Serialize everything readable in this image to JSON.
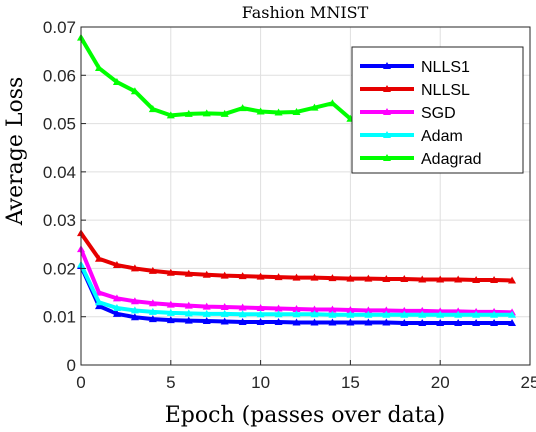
{
  "chart_data": {
    "type": "line",
    "title": "Fashion MNIST",
    "xlabel": "Epoch (passes over data)",
    "ylabel": "Average Loss",
    "xlim": [
      0,
      25
    ],
    "ylim": [
      0,
      0.07
    ],
    "xticks": [
      0,
      5,
      10,
      15,
      20,
      25
    ],
    "yticks": [
      0,
      0.01,
      0.02,
      0.03,
      0.04,
      0.05,
      0.06,
      0.07
    ],
    "xtick_labels": [
      "0",
      "5",
      "10",
      "15",
      "20",
      "25"
    ],
    "ytick_labels": [
      "0",
      "0.01",
      "0.02",
      "0.03",
      "0.04",
      "0.05",
      "0.06",
      "0.07"
    ],
    "grid": true,
    "legend_position": "top-right",
    "x": [
      0,
      1,
      2,
      3,
      4,
      5,
      6,
      7,
      8,
      9,
      10,
      11,
      12,
      13,
      14,
      15,
      16,
      17,
      18,
      19,
      20,
      21,
      22,
      23,
      24
    ],
    "series": [
      {
        "name": "NLLS1",
        "color": "#0000ff",
        "values": [
          0.0205,
          0.0122,
          0.0106,
          0.0099,
          0.0095,
          0.0093,
          0.0092,
          0.0091,
          0.009,
          0.0089,
          0.0089,
          0.0089,
          0.0088,
          0.0088,
          0.0088,
          0.0088,
          0.0088,
          0.0088,
          0.0087,
          0.0087,
          0.0087,
          0.0087,
          0.0087,
          0.0087,
          0.0087
        ]
      },
      {
        "name": "NLLSL",
        "color": "#e60000",
        "values": [
          0.0273,
          0.022,
          0.0207,
          0.02,
          0.0195,
          0.0191,
          0.0189,
          0.0187,
          0.0185,
          0.0184,
          0.0183,
          0.0182,
          0.0181,
          0.0181,
          0.018,
          0.0179,
          0.0179,
          0.0178,
          0.0178,
          0.0177,
          0.0177,
          0.0177,
          0.0176,
          0.0176,
          0.0175
        ]
      },
      {
        "name": "SGD",
        "color": "#ff00ff",
        "values": [
          0.024,
          0.015,
          0.0138,
          0.0132,
          0.0128,
          0.0125,
          0.0123,
          0.0121,
          0.012,
          0.0119,
          0.0118,
          0.0117,
          0.0116,
          0.0115,
          0.0115,
          0.0114,
          0.0113,
          0.0113,
          0.0112,
          0.0112,
          0.0111,
          0.0111,
          0.011,
          0.011,
          0.0109
        ]
      },
      {
        "name": "Adam",
        "color": "#00ffff",
        "values": [
          0.0208,
          0.013,
          0.0118,
          0.0113,
          0.011,
          0.0108,
          0.0107,
          0.0106,
          0.0106,
          0.0105,
          0.0105,
          0.0105,
          0.0105,
          0.0105,
          0.0104,
          0.0104,
          0.0104,
          0.0104,
          0.0104,
          0.0104,
          0.0104,
          0.0104,
          0.0104,
          0.0104,
          0.0104
        ]
      },
      {
        "name": "Adagrad",
        "color": "#00ff00",
        "values": [
          0.0678,
          0.0615,
          0.0586,
          0.0567,
          0.053,
          0.0517,
          0.052,
          0.0521,
          0.052,
          0.0532,
          0.0525,
          0.0523,
          0.0524,
          0.0533,
          0.0542,
          0.051,
          0.0505,
          0.0508,
          0.0512,
          0.052,
          0.053,
          0.054,
          0.0538,
          0.0546,
          0.055
        ]
      }
    ]
  }
}
